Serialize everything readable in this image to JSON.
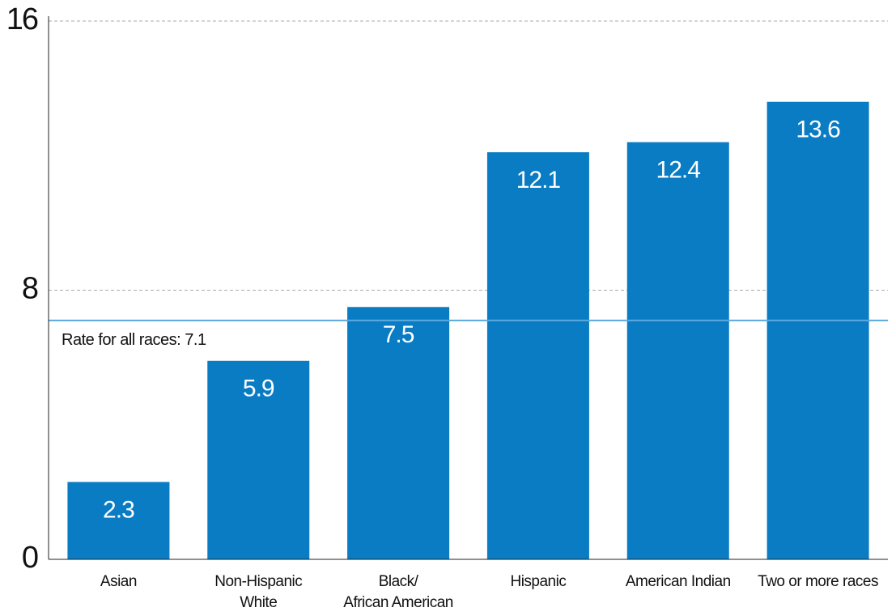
{
  "chart_data": {
    "type": "bar",
    "categories": [
      "Asian",
      "Non-Hispanic\nWhite",
      "Black/\nAfrican American",
      "Hispanic",
      "American Indian",
      "Two or more races"
    ],
    "values": [
      2.3,
      5.9,
      7.5,
      12.1,
      12.4,
      13.6
    ],
    "color": "#0a7cc4",
    "ylim": [
      0,
      16
    ],
    "yticks": [
      0,
      8,
      16
    ],
    "grid": true,
    "reference_line": {
      "value": 7.1,
      "label": "Rate for all races: 7.1",
      "color": "#5aaadf"
    }
  }
}
